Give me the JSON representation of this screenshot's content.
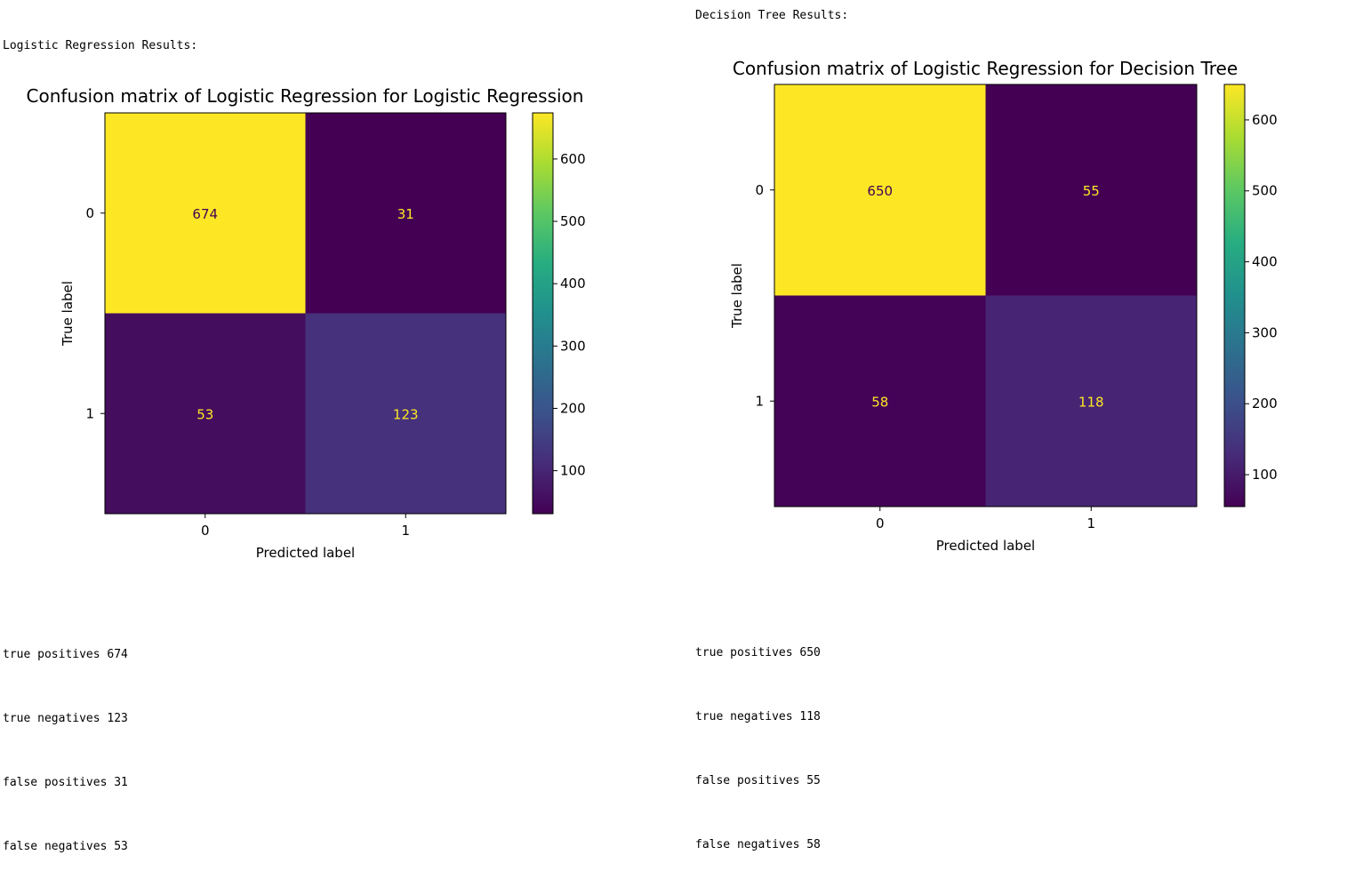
{
  "panels": [
    {
      "header": "Logistic Regression Results:",
      "stats": [
        "true positives 674",
        "true negatives 123",
        "false positives 31",
        "false negatives 53"
      ]
    },
    {
      "header": "Decision Tree Results:",
      "stats": [
        "true positives 650",
        "true negatives 118",
        "false positives 55",
        "false negatives 58"
      ]
    }
  ],
  "chart_data": [
    {
      "type": "heatmap",
      "title": "Confusion matrix of Logistic Regression for Logistic Regression",
      "xlabel": "Predicted label",
      "ylabel": "True label",
      "x_ticks": [
        "0",
        "1"
      ],
      "y_ticks": [
        "0",
        "1"
      ],
      "matrix": [
        [
          674,
          31
        ],
        [
          53,
          123
        ]
      ],
      "colorbar": {
        "min": 31,
        "max": 674,
        "ticks": [
          100,
          200,
          300,
          400,
          500,
          600
        ]
      },
      "colormap": "viridis"
    },
    {
      "type": "heatmap",
      "title": "Confusion matrix of Logistic Regression for Decision Tree",
      "xlabel": "Predicted label",
      "ylabel": "True label",
      "x_ticks": [
        "0",
        "1"
      ],
      "y_ticks": [
        "0",
        "1"
      ],
      "matrix": [
        [
          650,
          55
        ],
        [
          58,
          118
        ]
      ],
      "colorbar": {
        "min": 55,
        "max": 650,
        "ticks": [
          100,
          200,
          300,
          400,
          500,
          600
        ]
      },
      "colormap": "viridis"
    }
  ]
}
